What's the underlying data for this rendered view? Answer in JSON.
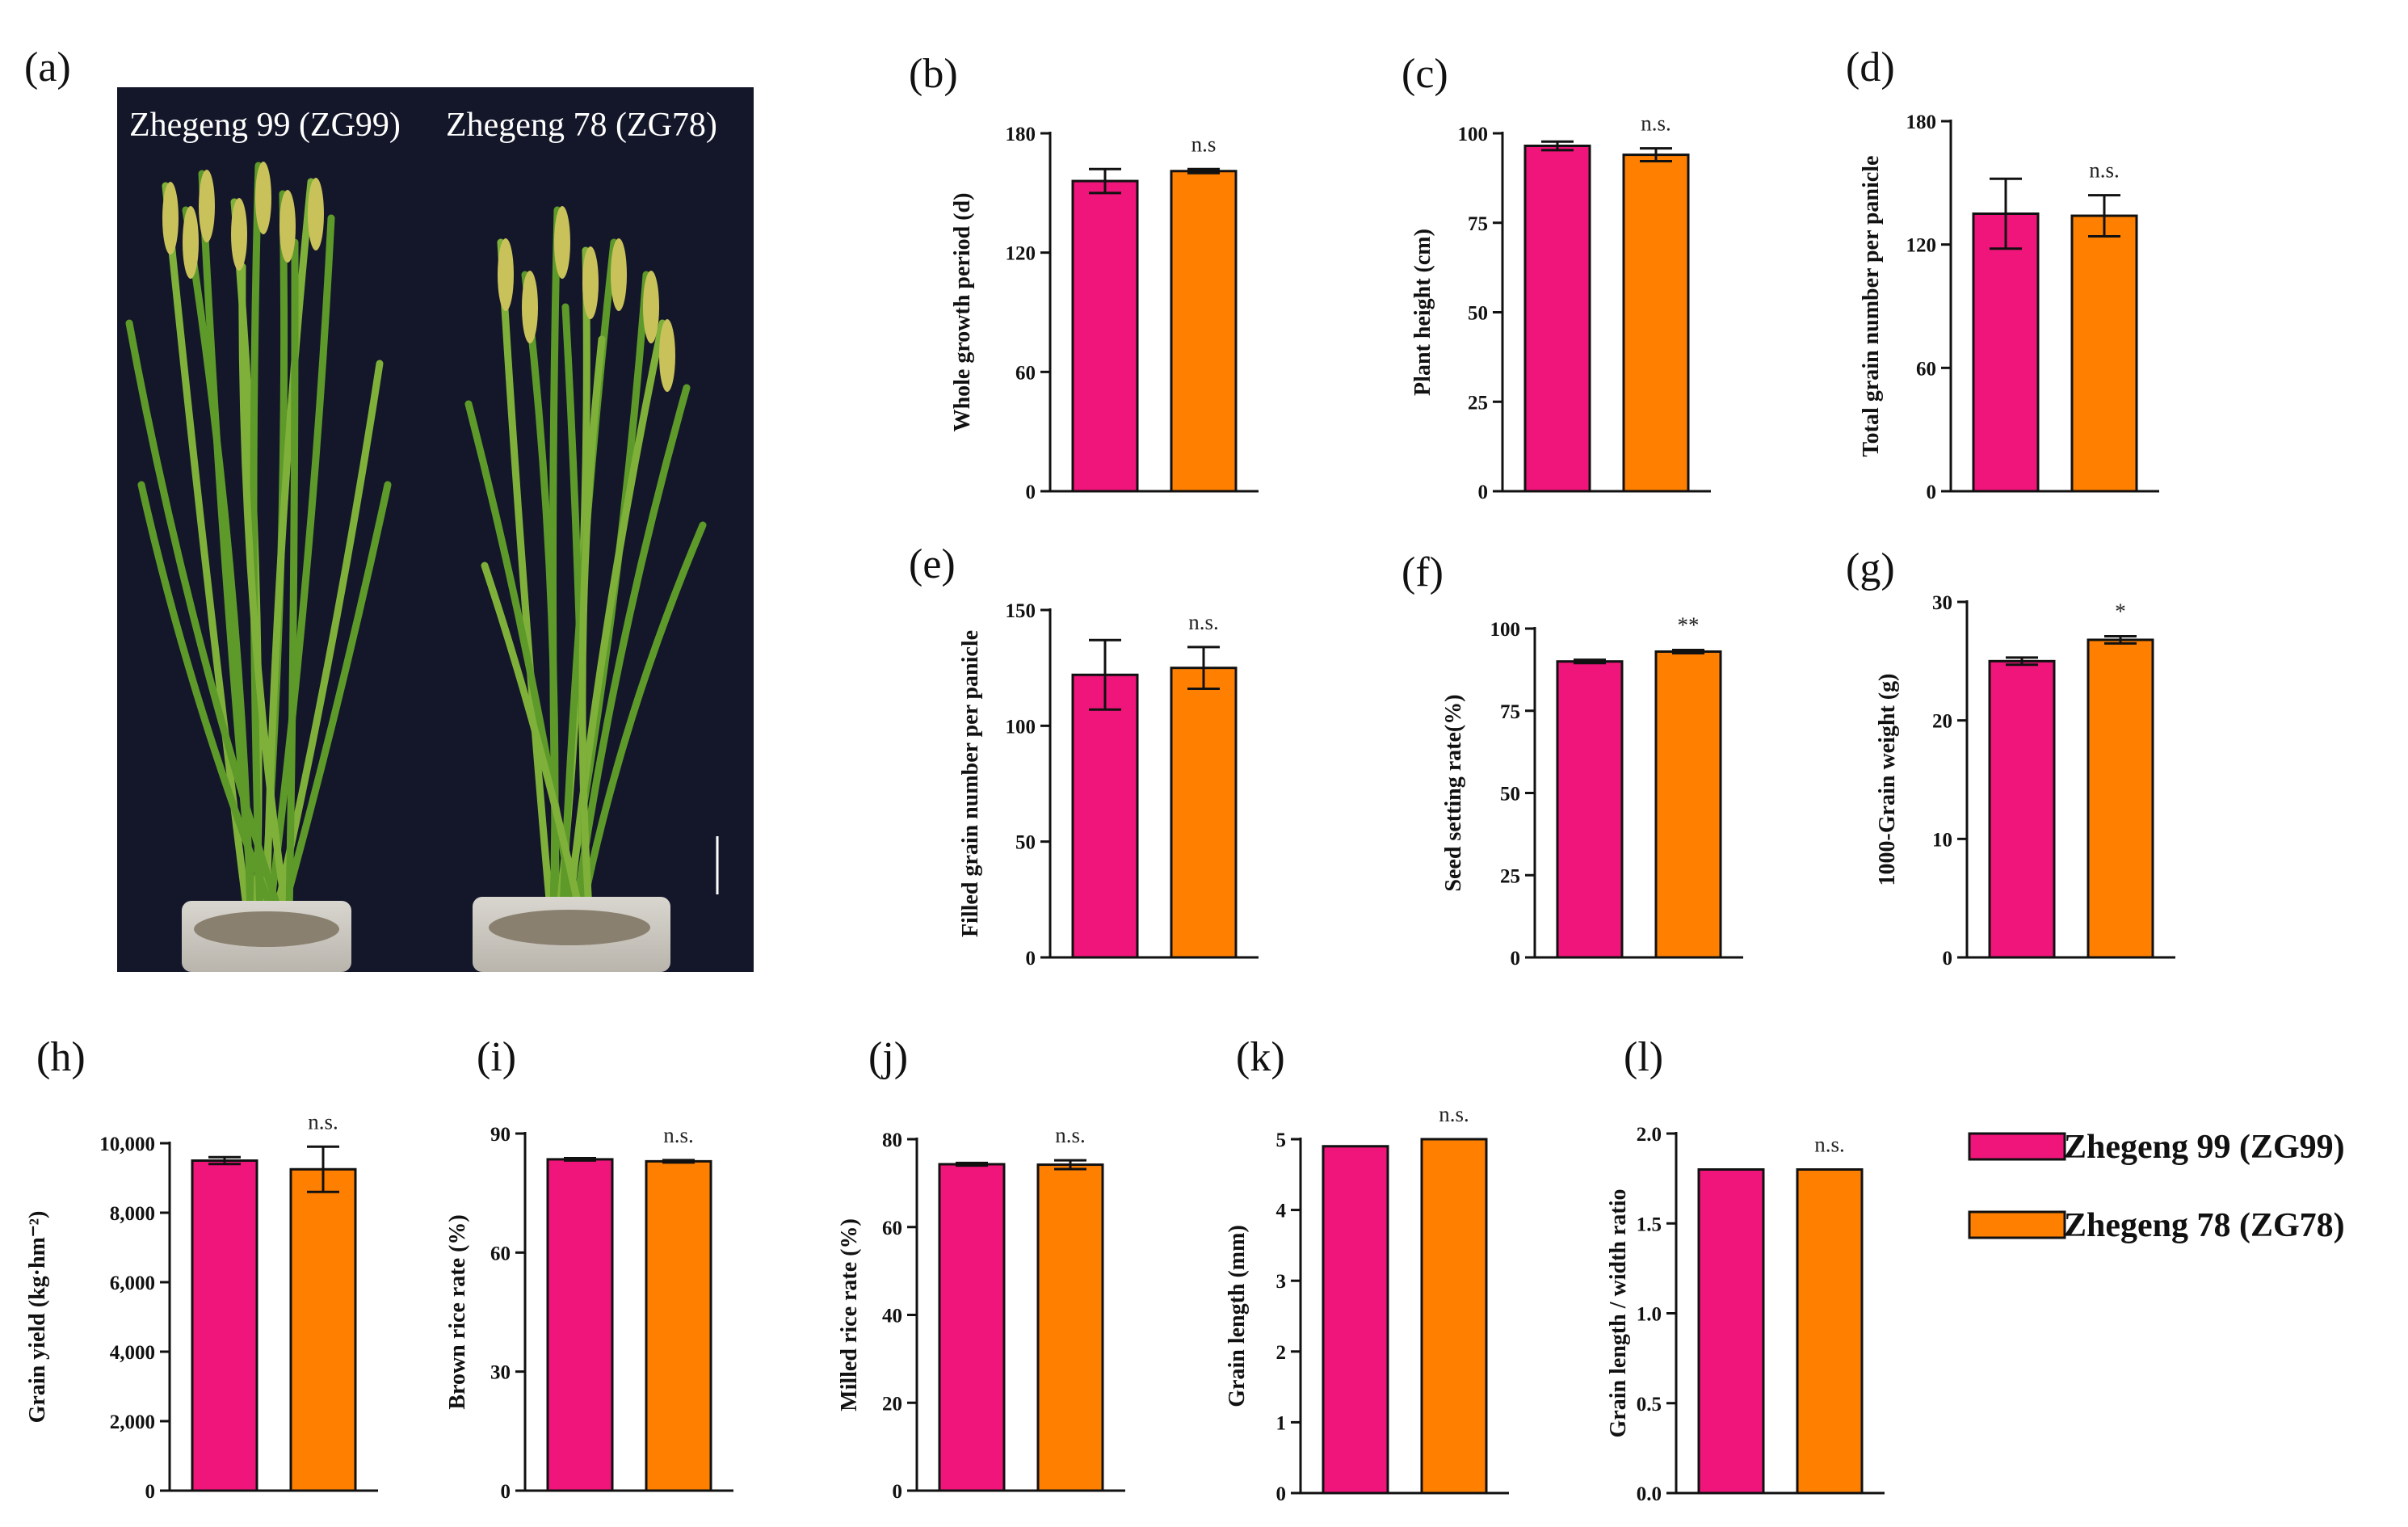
{
  "figure": {
    "photo_panel_label": "(a)",
    "photo_caption_left": "Zhegeng 99 (ZG99)",
    "photo_caption_right": "Zhegeng 78 (ZG78)"
  },
  "legend": {
    "items": [
      {
        "label": "Zhegeng 99 (ZG99)",
        "color": "#f0157a"
      },
      {
        "label": "Zhegeng 78 (ZG78)",
        "color": "#ff8000"
      }
    ]
  },
  "chart_data": [
    {
      "panel": "(b)",
      "type": "bar",
      "ylabel": "Whole growth period (d)",
      "ylim": [
        0,
        180
      ],
      "ticks": [
        "0",
        "60",
        "120",
        "180"
      ],
      "categories": [
        "Zhegeng 99 (ZG99)",
        "Zhegeng 78 (ZG78)"
      ],
      "values": [
        156,
        161
      ],
      "errors": [
        6,
        1
      ],
      "significance": "n.s"
    },
    {
      "panel": "(c)",
      "type": "bar",
      "ylabel": "Plant height (cm)",
      "ylim": [
        0,
        100
      ],
      "ticks": [
        "0",
        "25",
        "50",
        "75",
        "100"
      ],
      "categories": [
        "Zhegeng 99 (ZG99)",
        "Zhegeng 78 (ZG78)"
      ],
      "values": [
        96.5,
        94
      ],
      "errors": [
        1.2,
        1.8
      ],
      "significance": "n.s."
    },
    {
      "panel": "(d)",
      "type": "bar",
      "ylabel": "Total grain number per panicle",
      "ylim": [
        0,
        180
      ],
      "ticks": [
        "0",
        "60",
        "120",
        "180"
      ],
      "categories": [
        "Zhegeng 99 (ZG99)",
        "Zhegeng 78 (ZG78)"
      ],
      "values": [
        135,
        134
      ],
      "errors": [
        17,
        10
      ],
      "significance": "n.s."
    },
    {
      "panel": "(e)",
      "type": "bar",
      "ylabel": "Filled grain number per panicle",
      "ylim": [
        0,
        150
      ],
      "ticks": [
        "0",
        "50",
        "100",
        "150"
      ],
      "categories": [
        "Zhegeng 99 (ZG99)",
        "Zhegeng 78 (ZG78)"
      ],
      "values": [
        122,
        125
      ],
      "errors": [
        15,
        9
      ],
      "significance": "n.s."
    },
    {
      "panel": "(f)",
      "type": "bar",
      "ylabel": "Seed setting rate(%)",
      "ylim": [
        0,
        100
      ],
      "ticks": [
        "0",
        "25",
        "50",
        "75",
        "100"
      ],
      "categories": [
        "Zhegeng 99 (ZG99)",
        "Zhegeng 78 (ZG78)"
      ],
      "values": [
        90,
        93
      ],
      "errors": [
        0.5,
        0.5
      ],
      "significance": "**"
    },
    {
      "panel": "(g)",
      "type": "bar",
      "ylabel": "1000-Grain weight (g)",
      "ylim": [
        0,
        30
      ],
      "ticks": [
        "0",
        "10",
        "20",
        "30"
      ],
      "categories": [
        "Zhegeng 99 (ZG99)",
        "Zhegeng 78 (ZG78)"
      ],
      "values": [
        25,
        26.8
      ],
      "errors": [
        0.3,
        0.3
      ],
      "significance": "*"
    },
    {
      "panel": "(h)",
      "type": "bar",
      "ylabel": "Grain yield (kg·hm⁻²)",
      "ylim": [
        0,
        10000
      ],
      "ticks": [
        "0",
        "2,000",
        "4,000",
        "6,000",
        "8,000",
        "10,000"
      ],
      "categories": [
        "Zhegeng 99 (ZG99)",
        "Zhegeng 78 (ZG78)"
      ],
      "values": [
        9500,
        9250
      ],
      "errors": [
        100,
        650
      ],
      "significance": "n.s."
    },
    {
      "panel": "(i)",
      "type": "bar",
      "ylabel": "Brown rice rate (%)",
      "ylim": [
        0,
        90
      ],
      "ticks": [
        "0",
        "30",
        "60",
        "90"
      ],
      "categories": [
        "Zhegeng 99 (ZG99)",
        "Zhegeng 78 (ZG78)"
      ],
      "values": [
        83.5,
        83
      ],
      "errors": [
        0.3,
        0.3
      ],
      "significance": "n.s."
    },
    {
      "panel": "(j)",
      "type": "bar",
      "ylabel": "Milled rice rate (%)",
      "ylim": [
        0,
        80
      ],
      "ticks": [
        "0",
        "20",
        "40",
        "60",
        "80"
      ],
      "categories": [
        "Zhegeng 99 (ZG99)",
        "Zhegeng 78 (ZG78)"
      ],
      "values": [
        74.3,
        74.2
      ],
      "errors": [
        0.3,
        1
      ],
      "significance": "n.s."
    },
    {
      "panel": "(k)",
      "type": "bar",
      "ylabel": "Grain length (mm)",
      "ylim": [
        0,
        5
      ],
      "ticks": [
        "0",
        "1",
        "2",
        "3",
        "4",
        "5"
      ],
      "categories": [
        "Zhegeng 99 (ZG99)",
        "Zhegeng 78 (ZG78)"
      ],
      "values": [
        4.9,
        5.0
      ],
      "errors": [
        0,
        0
      ],
      "significance": "n.s."
    },
    {
      "panel": "(l)",
      "type": "bar",
      "ylabel": "Grain length / width ratio",
      "ylim": [
        0,
        2
      ],
      "ticks": [
        "0.0",
        "0.5",
        "1.0",
        "1.5",
        "2.0"
      ],
      "categories": [
        "Zhegeng 99 (ZG99)",
        "Zhegeng 78 (ZG78)"
      ],
      "values": [
        1.8,
        1.8
      ],
      "errors": [
        0,
        0
      ],
      "significance": "n.s."
    }
  ]
}
